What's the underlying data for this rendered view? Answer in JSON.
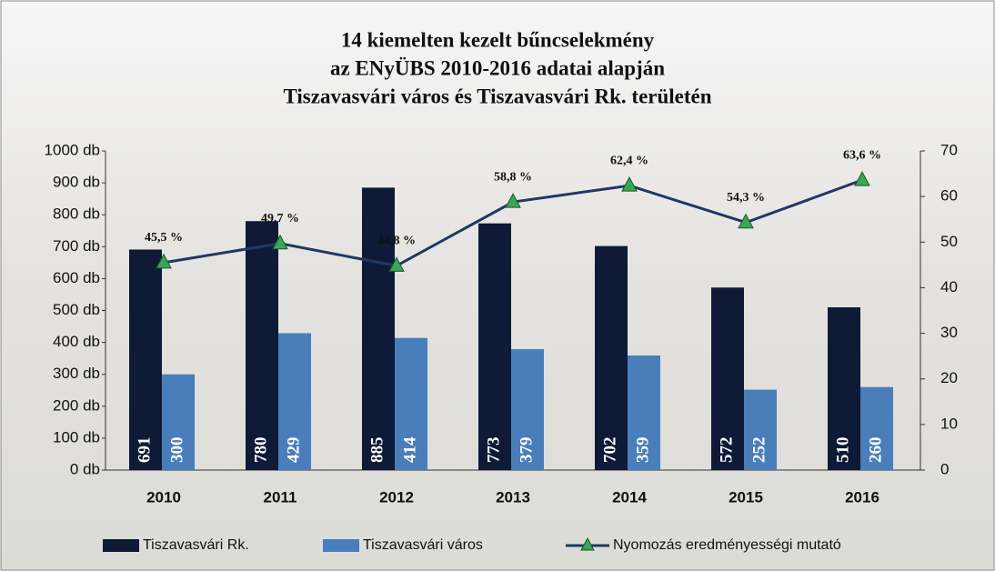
{
  "chart_data": {
    "type": "bar-line",
    "title": [
      "14 kiemelten kezelt bűncselekmény",
      "az ENyÜBS  2010-2016 adatai alapján",
      "Tiszavasvári város és Tiszavasvári Rk. területén"
    ],
    "categories": [
      "2010",
      "2011",
      "2012",
      "2013",
      "2014",
      "2015",
      "2016"
    ],
    "series": [
      {
        "name": "Tiszavasvári Rk.",
        "color": "#0e1a36",
        "type": "bar",
        "values": [
          691,
          780,
          885,
          773,
          702,
          572,
          510
        ]
      },
      {
        "name": "Tiszavasvári város",
        "color": "#4a7ebb",
        "type": "bar",
        "values": [
          300,
          429,
          414,
          379,
          359,
          252,
          260
        ]
      },
      {
        "name": "Nyomozás eredményességi mutató",
        "color": "#1f3864",
        "marker_color": "#3aa657",
        "type": "line",
        "axis": "y2",
        "values": [
          45.5,
          49.7,
          44.8,
          58.8,
          62.4,
          54.3,
          63.6
        ],
        "value_labels": [
          "45,5 %",
          "49,7 %",
          "44,8 %",
          "58,8 %",
          "62,4 %",
          "54,3 %",
          "63,6 %"
        ]
      }
    ],
    "ylim": [
      0,
      1000
    ],
    "yticks": [
      {
        "value": 0,
        "label": "0 db"
      },
      {
        "value": 100,
        "label": "100 db"
      },
      {
        "value": 200,
        "label": "200 db"
      },
      {
        "value": 300,
        "label": "300 db"
      },
      {
        "value": 400,
        "label": "400 db"
      },
      {
        "value": 500,
        "label": "500 db"
      },
      {
        "value": 600,
        "label": "600 db"
      },
      {
        "value": 700,
        "label": "700 db"
      },
      {
        "value": 800,
        "label": "800 db"
      },
      {
        "value": 900,
        "label": "900 db"
      },
      {
        "value": 1000,
        "label": "1000 db"
      }
    ],
    "y2lim": [
      0,
      70
    ],
    "y2ticks": [
      0,
      10,
      20,
      30,
      40,
      50,
      60,
      70
    ]
  }
}
